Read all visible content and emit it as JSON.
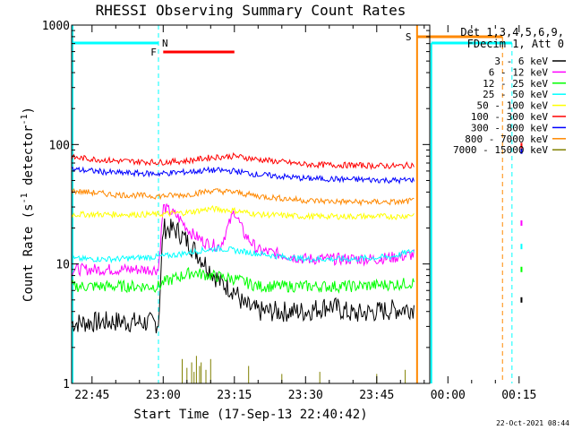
{
  "chart_data": {
    "type": "line",
    "title": "RHESSI Observing Summary Count Rates",
    "xlabel": "Start Time (17-Sep-13 22:40:42)",
    "ylabel": "Count Rate (s⁻¹ detector⁻¹)",
    "ylabel_parts": {
      "main": "Count Rate (s",
      "sup1": "-1",
      "mid": " detector",
      "sup2": "-1",
      "end": ")"
    },
    "y_scale": "log",
    "ylim": [
      1,
      1000
    ],
    "xlim": [
      "22:40:42",
      "00:19:00"
    ],
    "y_ticks": [
      {
        "value": 1,
        "label": "1"
      },
      {
        "value": 10,
        "label": "10"
      },
      {
        "value": 100,
        "label": "100"
      },
      {
        "value": 1000,
        "label": "1000"
      }
    ],
    "x_ticks": [
      {
        "time": "22:45",
        "label": "22:45"
      },
      {
        "time": "23:00",
        "label": "23:00"
      },
      {
        "time": "23:15",
        "label": "23:15"
      },
      {
        "time": "23:30",
        "label": "23:30"
      },
      {
        "time": "23:45",
        "label": "23:45"
      },
      {
        "time": "00:00",
        "label": "00:00"
      },
      {
        "time": "00:15",
        "label": "00:15"
      }
    ],
    "legend_header": [
      "Det 1,3,4,5,6,9,",
      "FDecim 1, Att 0"
    ],
    "legend_position": "right",
    "series": [
      {
        "name": "3 - 6 keV",
        "color": "#000000",
        "points": [
          [
            "22:40:42",
            3.2
          ],
          [
            "22:50",
            3.3
          ],
          [
            "22:59",
            3.2
          ],
          [
            "23:00",
            20
          ],
          [
            "23:03",
            19
          ],
          [
            "23:06",
            14
          ],
          [
            "23:09",
            10
          ],
          [
            "23:12",
            7
          ],
          [
            "23:15",
            6
          ],
          [
            "23:17",
            4.5
          ],
          [
            "23:20",
            4
          ],
          [
            "23:25",
            4
          ],
          [
            "23:30",
            4
          ],
          [
            "23:35",
            4.5
          ],
          [
            "23:40",
            3.8
          ],
          [
            "23:45",
            4
          ],
          [
            "23:50",
            4.2
          ],
          [
            "23:53",
            4.3
          ]
        ]
      },
      {
        "name": "6 - 12 keV",
        "color": "#ff00ff",
        "points": [
          [
            "22:40:42",
            9
          ],
          [
            "22:50",
            9
          ],
          [
            "22:59",
            9
          ],
          [
            "23:00",
            30
          ],
          [
            "23:03",
            25
          ],
          [
            "23:06",
            18
          ],
          [
            "23:09",
            15
          ],
          [
            "23:12",
            14
          ],
          [
            "23:14",
            22
          ],
          [
            "23:15",
            28
          ],
          [
            "23:17",
            18
          ],
          [
            "23:20",
            13
          ],
          [
            "23:25",
            12
          ],
          [
            "23:30",
            11
          ],
          [
            "23:35",
            11
          ],
          [
            "23:40",
            11
          ],
          [
            "23:45",
            11
          ],
          [
            "23:50",
            11.5
          ],
          [
            "23:53",
            12
          ]
        ]
      },
      {
        "name": "12 - 25 keV",
        "color": "#00ff00",
        "points": [
          [
            "22:40:42",
            6.5
          ],
          [
            "22:50",
            6.5
          ],
          [
            "22:59",
            6.5
          ],
          [
            "23:00",
            7
          ],
          [
            "23:06",
            8.5
          ],
          [
            "23:10",
            8
          ],
          [
            "23:15",
            7.5
          ],
          [
            "23:20",
            6.5
          ],
          [
            "23:30",
            6.5
          ],
          [
            "23:40",
            6.5
          ],
          [
            "23:50",
            6.8
          ],
          [
            "23:53",
            7
          ]
        ]
      },
      {
        "name": "25 - 50 keV",
        "color": "#00ffff",
        "points": [
          [
            "22:40:42",
            11
          ],
          [
            "22:50",
            11
          ],
          [
            "22:59",
            11.5
          ],
          [
            "23:03",
            12
          ],
          [
            "23:08",
            13
          ],
          [
            "23:12",
            13.5
          ],
          [
            "23:18",
            12.5
          ],
          [
            "23:25",
            11.5
          ],
          [
            "23:30",
            11
          ],
          [
            "23:40",
            11
          ],
          [
            "23:48",
            11.5
          ],
          [
            "23:53",
            13
          ]
        ]
      },
      {
        "name": "50 - 100 keV",
        "color": "#ffff00",
        "points": [
          [
            "22:40:42",
            26
          ],
          [
            "22:50",
            26
          ],
          [
            "22:59",
            26
          ],
          [
            "23:05",
            27
          ],
          [
            "23:10",
            29
          ],
          [
            "23:15",
            28
          ],
          [
            "23:20",
            26
          ],
          [
            "23:30",
            25
          ],
          [
            "23:40",
            25
          ],
          [
            "23:50",
            25
          ],
          [
            "23:53",
            26
          ]
        ]
      },
      {
        "name": "100 - 300 keV",
        "color": "#ff0000",
        "points": [
          [
            "22:40:42",
            78
          ],
          [
            "22:50",
            73
          ],
          [
            "22:59",
            71
          ],
          [
            "23:05",
            73
          ],
          [
            "23:10",
            78
          ],
          [
            "23:15",
            80
          ],
          [
            "23:20",
            75
          ],
          [
            "23:30",
            68
          ],
          [
            "23:40",
            67
          ],
          [
            "23:50",
            66
          ],
          [
            "23:53",
            68
          ]
        ]
      },
      {
        "name": "300 - 800 keV",
        "color": "#0000ff",
        "points": [
          [
            "22:40:42",
            62
          ],
          [
            "22:50",
            58
          ],
          [
            "22:59",
            57
          ],
          [
            "23:05",
            59
          ],
          [
            "23:10",
            61
          ],
          [
            "23:15",
            60
          ],
          [
            "23:20",
            56
          ],
          [
            "23:30",
            52
          ],
          [
            "23:40",
            51
          ],
          [
            "23:50",
            50
          ],
          [
            "23:53",
            51
          ]
        ]
      },
      {
        "name": "800 - 7000 keV",
        "color": "#ff8800",
        "points": [
          [
            "22:40:42",
            41
          ],
          [
            "22:50",
            38
          ],
          [
            "22:59",
            37
          ],
          [
            "23:05",
            38
          ],
          [
            "23:10",
            41
          ],
          [
            "23:15",
            40
          ],
          [
            "23:20",
            37
          ],
          [
            "23:30",
            34
          ],
          [
            "23:40",
            33
          ],
          [
            "23:50",
            33
          ],
          [
            "23:53",
            34
          ]
        ]
      },
      {
        "name": "7000 - 15000 keV",
        "color": "#808000",
        "points": []
      }
    ],
    "annotations": [
      {
        "label": "N",
        "color": "#00ffff",
        "kind": "night"
      },
      {
        "label": "F",
        "color": "#ff0000",
        "kind": "flare"
      },
      {
        "label": "S",
        "color": "#ff8800",
        "kind": "saa"
      }
    ],
    "footer_date": "22-Oct-2021 08:44"
  }
}
